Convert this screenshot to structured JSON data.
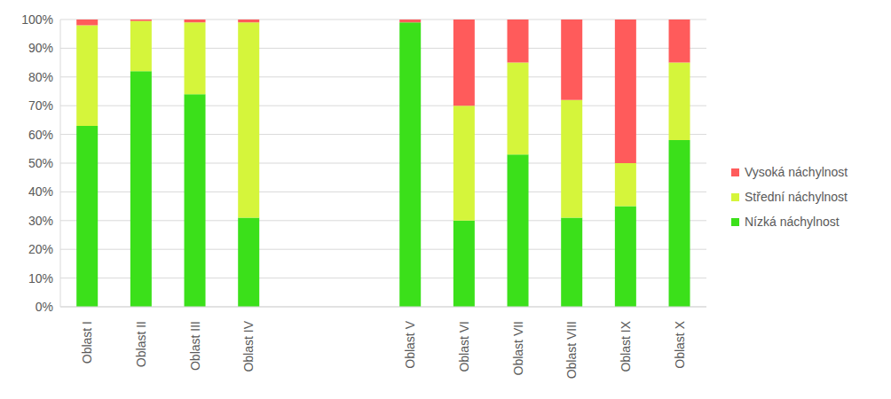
{
  "chart_data": {
    "type": "bar",
    "stacked": true,
    "grid": true,
    "legend": "right",
    "categories": [
      "Oblast I",
      "Oblast II",
      "Oblast III",
      "Oblast IV",
      null,
      null,
      "Oblast V",
      "Oblast VI",
      "Oblast VII",
      "Oblast VIII",
      "Oblast IX",
      "Oblast X"
    ],
    "series": [
      {
        "name": "Nízká náchylnost",
        "color": "#3be01a",
        "values": [
          63,
          82,
          74,
          31,
          null,
          null,
          99,
          30,
          53,
          31,
          35,
          58
        ]
      },
      {
        "name": "Střední náchylnost",
        "color": "#d5f53b",
        "values": [
          35,
          17.5,
          25,
          68,
          null,
          null,
          0,
          40,
          32,
          41,
          15,
          27
        ]
      },
      {
        "name": "Vysoká náchylnost",
        "color": "#ff5b5b",
        "values": [
          2,
          0.5,
          1,
          1,
          null,
          null,
          1,
          30,
          15,
          28,
          50,
          15
        ]
      }
    ],
    "ylim": [
      0,
      100
    ],
    "yticks": [
      {
        "value": 0,
        "label": "0%"
      },
      {
        "value": 10,
        "label": "10%"
      },
      {
        "value": 20,
        "label": "20%"
      },
      {
        "value": 30,
        "label": "30%"
      },
      {
        "value": 40,
        "label": "40%"
      },
      {
        "value": 50,
        "label": "50%"
      },
      {
        "value": 60,
        "label": "60%"
      },
      {
        "value": 70,
        "label": "70%"
      },
      {
        "value": 80,
        "label": "80%"
      },
      {
        "value": 90,
        "label": "90%"
      },
      {
        "value": 100,
        "label": "100%"
      }
    ]
  }
}
